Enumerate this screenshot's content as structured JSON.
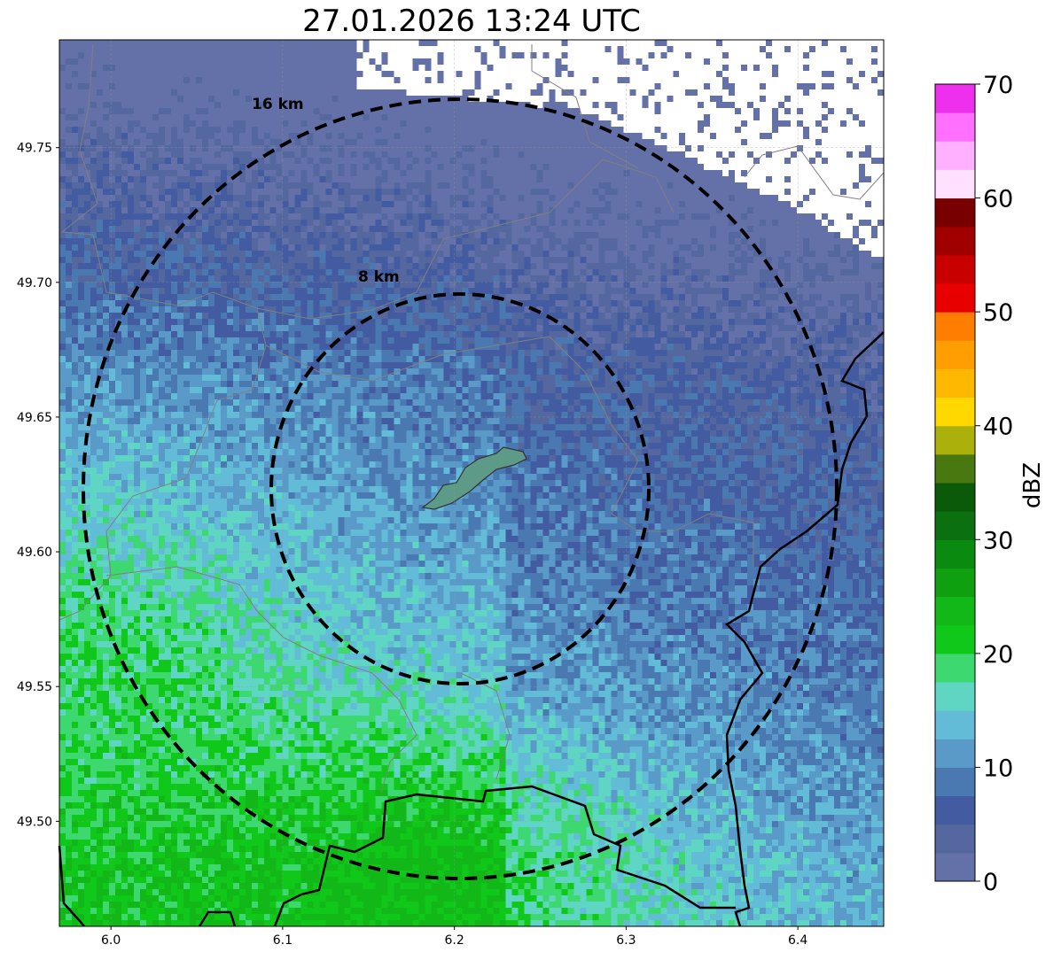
{
  "title": "27.01.2026 13:24 UTC",
  "map": {
    "lon_range": [
      5.97,
      6.45
    ],
    "lat_range": [
      49.461,
      49.79
    ],
    "lon_ticks": [
      6.0,
      6.1,
      6.2,
      6.3,
      6.4
    ],
    "lon_tick_labels": [
      "6.0",
      "6.1",
      "6.2",
      "6.3",
      "6.4"
    ],
    "lat_ticks": [
      49.5,
      49.55,
      49.6,
      49.65,
      49.7,
      49.75
    ],
    "lat_tick_labels": [
      "49.50",
      "49.55",
      "49.60",
      "49.65",
      "49.70",
      "49.75"
    ],
    "range_rings": [
      {
        "label": "16 km",
        "radius_km": 16
      },
      {
        "label": "8 km",
        "radius_km": 8
      }
    ],
    "radar_center": {
      "lon": 6.203,
      "lat": 49.624
    }
  },
  "colorbar": {
    "label": "dBZ",
    "range": [
      0,
      70
    ],
    "ticks": [
      0,
      10,
      20,
      30,
      40,
      50,
      60,
      70
    ],
    "tick_labels": [
      "0",
      "10",
      "20",
      "30",
      "40",
      "50",
      "60",
      "70"
    ],
    "step": 2.5,
    "colors": [
      "#6470a8",
      "#55679f",
      "#435ba0",
      "#4a78b0",
      "#5a9ac8",
      "#62bcd8",
      "#5fd6c4",
      "#3dd870",
      "#10c81a",
      "#12b818",
      "#0fa010",
      "#0b8a10",
      "#0a7010",
      "#0a5a0a",
      "#4a7810",
      "#acb00a",
      "#ffd800",
      "#ffb800",
      "#ff9e00",
      "#ff7d00",
      "#e80000",
      "#c80000",
      "#a00000",
      "#780000",
      "#ffe0ff",
      "#ffb0ff",
      "#ff70ff",
      "#ee30ee"
    ]
  }
}
